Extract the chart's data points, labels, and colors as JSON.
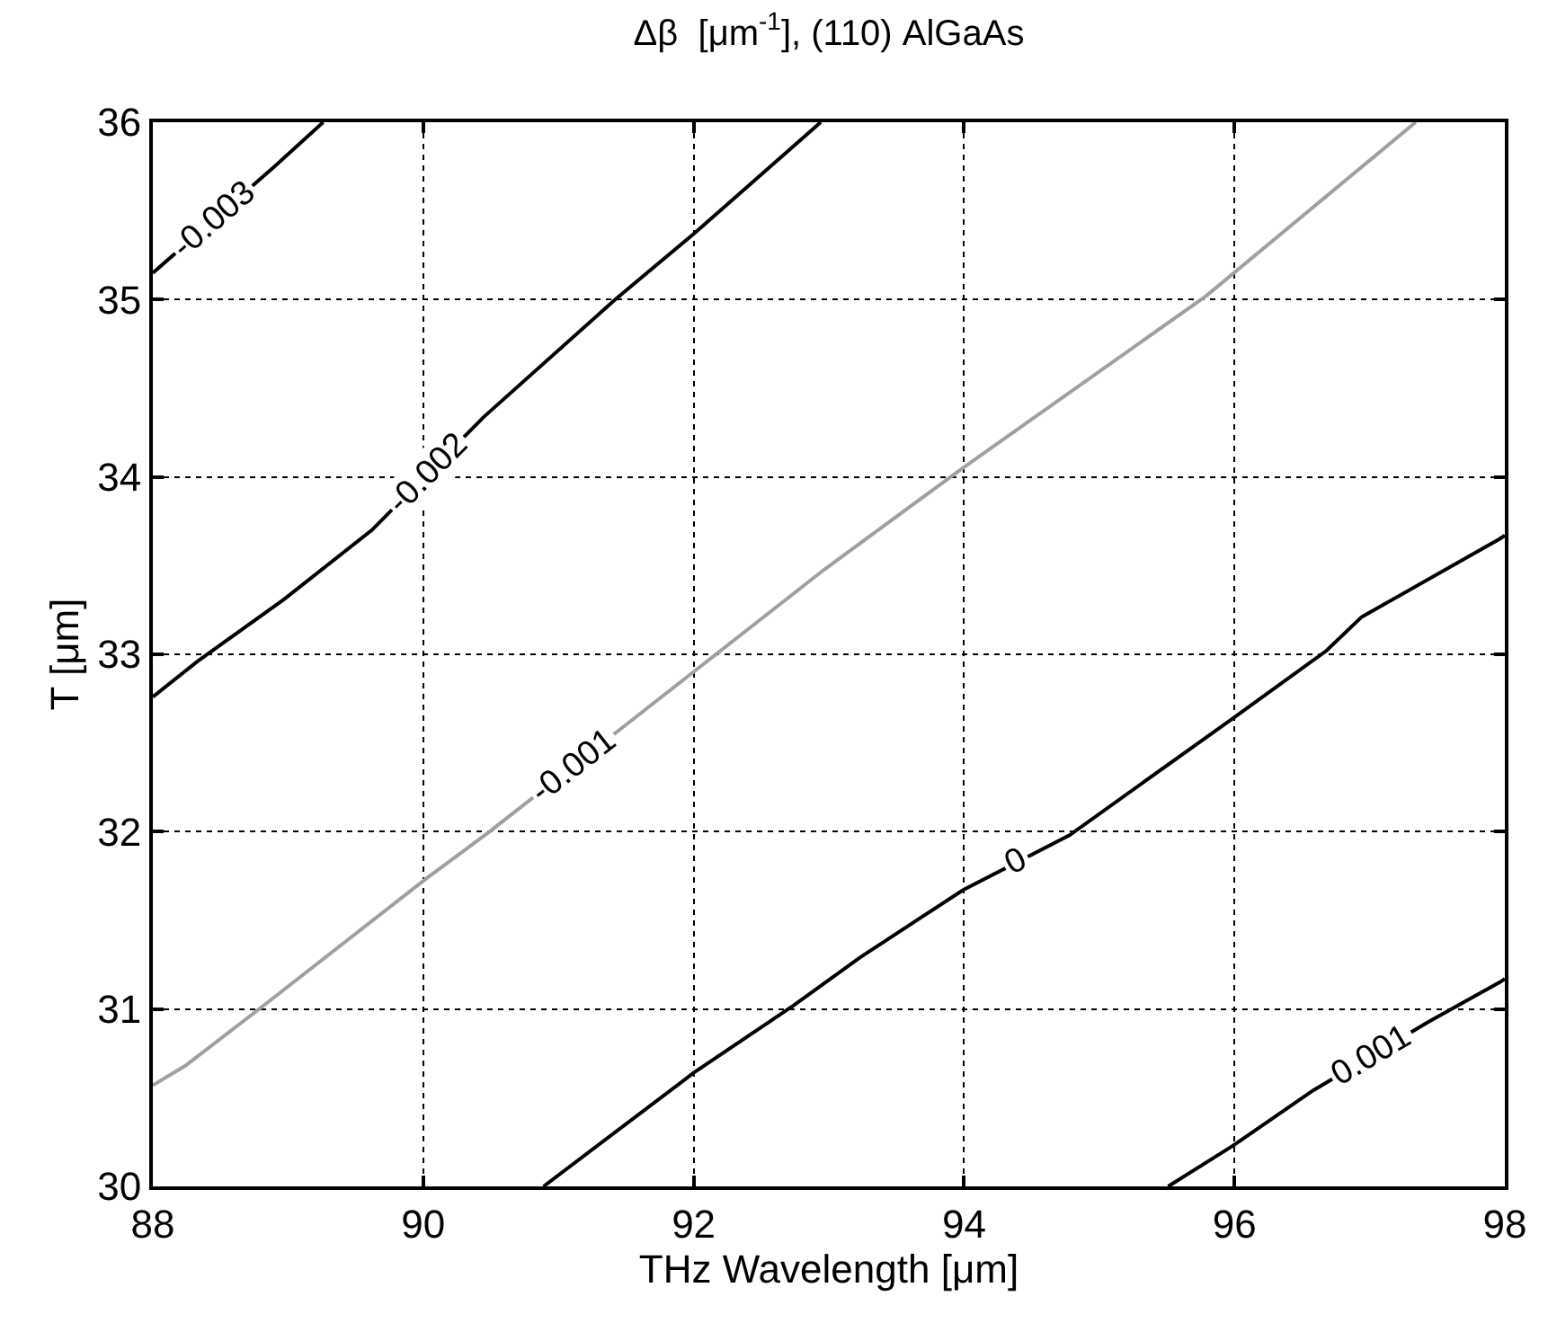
{
  "chart_data": {
    "type": "line",
    "title": "Δβ  [μm$^{-1}$], (110) AlGaAs",
    "xlabel": "THz Wavelength [μm]",
    "ylabel": "T [μm]",
    "xlim": [
      88,
      98
    ],
    "xticks": [
      88,
      90,
      92,
      94,
      96,
      98
    ],
    "ylim": [
      30,
      36
    ],
    "yticks": [
      30,
      31,
      32,
      33,
      34,
      35,
      36
    ],
    "grid": true,
    "legend": false,
    "marker": "none",
    "line_style": "solid",
    "series": [
      {
        "name": "-0.003",
        "color": "#000000",
        "x": [
          88,
          88.9,
          89.26
        ],
        "values": [
          35.15,
          35.75,
          36
        ]
      },
      {
        "name": "-0.002",
        "color": "#000000",
        "x": [
          88,
          88.33,
          88.97,
          89.62,
          90.45,
          91.42,
          92.0,
          92.94
        ],
        "values": [
          32.76,
          32.96,
          33.31,
          33.7,
          34.34,
          35.0,
          35.37,
          36
        ]
      },
      {
        "name": "-0.001",
        "color": "#a0a0a0",
        "x": [
          88,
          88.24,
          88.82,
          90.03,
          90.49,
          91.73,
          92.97,
          93.99,
          95.79,
          97.34
        ],
        "values": [
          30.57,
          30.68,
          31.02,
          31.74,
          32.0,
          32.74,
          33.48,
          34.05,
          35.02,
          36
        ]
      },
      {
        "name": "0",
        "color": "#000000",
        "x": [
          90.89,
          92.0,
          92.74,
          93.23,
          93.99,
          94.78,
          95.99,
          96.68,
          96.94,
          97.96,
          98
        ],
        "values": [
          30,
          30.64,
          31.02,
          31.29,
          31.67,
          31.98,
          32.64,
          33.02,
          33.21,
          33.65,
          33.67
        ]
      },
      {
        "name": "0.001",
        "color": "#000000",
        "x": [
          95.51,
          95.99,
          96.58,
          97.44,
          97.96,
          98
        ],
        "values": [
          30,
          30.23,
          30.54,
          30.93,
          31.15,
          31.17
        ]
      }
    ]
  }
}
